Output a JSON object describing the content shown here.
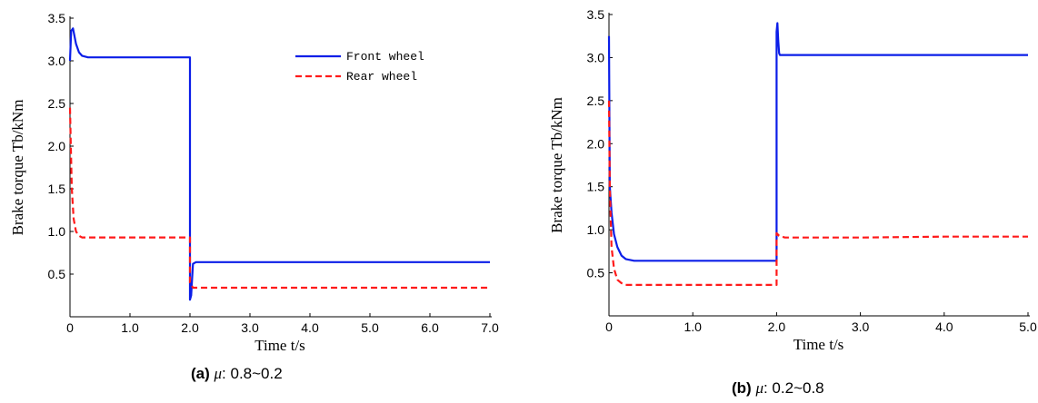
{
  "colors": {
    "front": "#0b1ee8",
    "rear": "#ff1a1a",
    "axis": "#000000"
  },
  "chart_data": [
    {
      "type": "line",
      "panel": "a",
      "xlabel": "Time  t/s",
      "ylabel": "Brake torque Tb/kNm",
      "xlim": [
        0,
        7
      ],
      "ylim": [
        0,
        3.5
      ],
      "xticks": [
        "0",
        "1.0",
        "2.0",
        "3.0",
        "4.0",
        "5.0",
        "6.0",
        "7.0"
      ],
      "yticks": [
        "0.5",
        "1.0",
        "1.5",
        "2.0",
        "2.5",
        "3.0",
        "3.5"
      ],
      "legend": {
        "position": "top-right",
        "entries": [
          "Front wheel",
          "Rear wheel"
        ]
      },
      "caption": {
        "tag": "(a)",
        "mu": "μ",
        "text": ": 0.8~0.2"
      },
      "series": [
        {
          "name": "Front wheel",
          "style": "solid",
          "x": [
            0,
            0.02,
            0.05,
            0.1,
            0.15,
            0.2,
            0.3,
            2.0,
            2.0,
            2.02,
            2.05,
            2.1,
            3,
            4,
            5,
            6,
            7
          ],
          "y": [
            3.0,
            3.35,
            3.38,
            3.2,
            3.1,
            3.06,
            3.04,
            3.04,
            0.2,
            0.25,
            0.62,
            0.64,
            0.64,
            0.64,
            0.64,
            0.64,
            0.64
          ]
        },
        {
          "name": "Rear wheel",
          "style": "dashed",
          "x": [
            0,
            0.01,
            0.03,
            0.06,
            0.1,
            0.15,
            0.2,
            0.3,
            2.0,
            2.0,
            2.05,
            3,
            4,
            5,
            6,
            7
          ],
          "y": [
            2.45,
            2.1,
            1.5,
            1.15,
            1.0,
            0.95,
            0.93,
            0.93,
            0.93,
            0.4,
            0.34,
            0.34,
            0.34,
            0.34,
            0.34,
            0.34
          ]
        }
      ]
    },
    {
      "type": "line",
      "panel": "b",
      "xlabel": "Time  t/s",
      "ylabel": "Brake torque Tb/kNm",
      "xlim": [
        0,
        5
      ],
      "ylim": [
        0,
        3.5
      ],
      "xticks": [
        "0",
        "1.0",
        "2.0",
        "3.0",
        "4.0",
        "5.0"
      ],
      "yticks": [
        "0.5",
        "1.0",
        "1.5",
        "2.0",
        "2.5",
        "3.0",
        "3.5"
      ],
      "caption": {
        "tag": "(b)",
        "mu": "μ",
        "text": ": 0.2~0.8"
      },
      "series": [
        {
          "name": "Front wheel",
          "style": "solid",
          "x": [
            0,
            0.01,
            0.03,
            0.06,
            0.1,
            0.15,
            0.2,
            0.3,
            2.0,
            2.0,
            2.01,
            2.02,
            2.03,
            2.04,
            2.06,
            3,
            4,
            5
          ],
          "y": [
            3.25,
            1.5,
            1.2,
            0.95,
            0.8,
            0.7,
            0.66,
            0.64,
            0.64,
            3.3,
            3.4,
            3.2,
            3.05,
            3.03,
            3.03,
            3.03,
            3.03,
            3.03
          ]
        },
        {
          "name": "Rear wheel",
          "style": "dashed",
          "x": [
            0,
            0.01,
            0.03,
            0.06,
            0.1,
            0.15,
            0.2,
            0.3,
            2.0,
            2.0,
            2.03,
            2.1,
            3,
            4,
            5
          ],
          "y": [
            2.5,
            1.5,
            0.8,
            0.55,
            0.42,
            0.38,
            0.36,
            0.36,
            0.36,
            0.96,
            0.93,
            0.91,
            0.91,
            0.92,
            0.92
          ]
        }
      ]
    }
  ]
}
